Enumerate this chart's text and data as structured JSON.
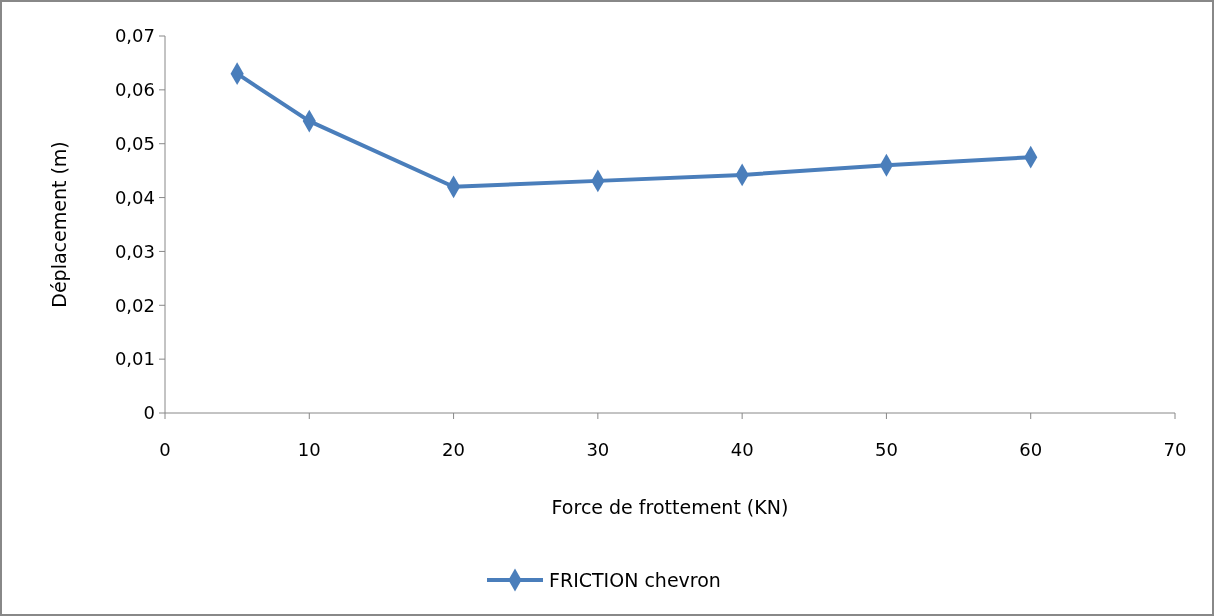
{
  "chart_data": {
    "type": "line",
    "xlabel": "Force de frottement (KN)",
    "ylabel": "Déplacement (m)",
    "x": [
      5,
      10,
      20,
      30,
      40,
      50,
      60
    ],
    "series": [
      {
        "name": "FRICTION chevron",
        "color": "#4a7ebb",
        "values": [
          0.063,
          0.0542,
          0.042,
          0.0431,
          0.0442,
          0.046,
          0.0475
        ]
      }
    ],
    "xlim": [
      0,
      70
    ],
    "xticks": [
      0,
      10,
      20,
      30,
      40,
      50,
      60,
      70
    ],
    "ylim": [
      0,
      0.07
    ],
    "yticks": [
      {
        "value": 0,
        "label": "0"
      },
      {
        "value": 0.01,
        "label": "0,01"
      },
      {
        "value": 0.02,
        "label": "0,02"
      },
      {
        "value": 0.03,
        "label": "0,03"
      },
      {
        "value": 0.04,
        "label": "0,04"
      },
      {
        "value": 0.05,
        "label": "0,05"
      },
      {
        "value": 0.06,
        "label": "0,06"
      },
      {
        "value": 0.07,
        "label": "0,07"
      }
    ],
    "grid": false,
    "legend": "bottom",
    "marker": "diamond",
    "line_style": "solid"
  }
}
